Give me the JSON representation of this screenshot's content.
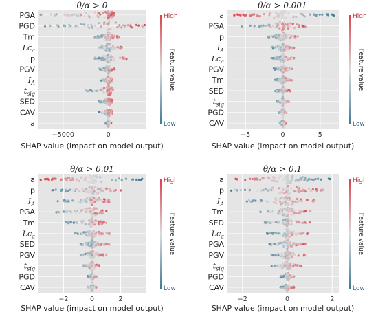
{
  "chart_data": [
    {
      "type": "beeswarm",
      "title": "θ/α > 0",
      "xlabel": "SHAP value (impact on model output)",
      "xlim": [
        -7800,
        4200
      ],
      "xticks": [
        -5000,
        0
      ],
      "xtick_labels": [
        "−5000",
        "0"
      ],
      "features": [
        "PGA",
        "PGD",
        "Tm",
        "Lc_a",
        "p",
        "PGV",
        "I_A",
        "t_sig",
        "SED",
        "CAV",
        "a"
      ],
      "feature_labels": [
        "PGA",
        "PGD",
        "Tm",
        "Lca",
        "p",
        "PGV",
        "IA",
        "tsig",
        "SED",
        "CAV",
        "a"
      ],
      "shap_range": [
        [
          -7500,
          600
        ],
        [
          -7000,
          4000
        ],
        [
          -1500,
          1200
        ],
        [
          -1000,
          1500
        ],
        [
          -1500,
          2000
        ],
        [
          -1000,
          700
        ],
        [
          -800,
          400
        ],
        [
          -2500,
          500
        ],
        [
          -1000,
          400
        ],
        [
          -1000,
          400
        ],
        [
          -300,
          300
        ]
      ],
      "colorbar": {
        "label": "Feature value",
        "high": "High",
        "low": "Low"
      }
    },
    {
      "type": "beeswarm",
      "title": "θ/α > 0.001",
      "xlabel": "SHAP value (impact on model output)",
      "xlim": [
        -7.5,
        7.5
      ],
      "xticks": [
        -5,
        0,
        5
      ],
      "xtick_labels": [
        "−5",
        "0",
        "5"
      ],
      "features": [
        "a",
        "PGA",
        "p",
        "I_A",
        "Lc_a",
        "PGV",
        "Tm",
        "SED",
        "t_sig",
        "PGD",
        "CAV"
      ],
      "feature_labels": [
        "a",
        "PGA",
        "p",
        "IA",
        "Lca",
        "PGV",
        "Tm",
        "SED",
        "tsig",
        "PGD",
        "CAV"
      ],
      "shap_range": [
        [
          -6.5,
          6.8
        ],
        [
          -5.5,
          3.0
        ],
        [
          -2.0,
          2.0
        ],
        [
          -1.5,
          1.5
        ],
        [
          -1.5,
          1.5
        ],
        [
          -1.2,
          1.2
        ],
        [
          -1.0,
          1.2
        ],
        [
          -1.0,
          1.0
        ],
        [
          -0.8,
          0.8
        ],
        [
          -0.5,
          0.5
        ],
        [
          -0.4,
          0.4
        ]
      ],
      "colorbar": {
        "label": "Feature value",
        "high": "High",
        "low": "Low"
      }
    },
    {
      "type": "beeswarm",
      "title": "θ/α > 0.01",
      "xlabel": "SHAP value (impact on model output)",
      "xlim": [
        -3.8,
        3.8
      ],
      "xticks": [
        -2,
        0,
        2
      ],
      "xtick_labels": [
        "−2",
        "0",
        "2"
      ],
      "features": [
        "a",
        "p",
        "I_A",
        "PGA",
        "Tm",
        "Lc_a",
        "SED",
        "PGV",
        "t_sig",
        "PGD",
        "CAV"
      ],
      "feature_labels": [
        "a",
        "p",
        "IA",
        "PGA",
        "Tm",
        "Lca",
        "SED",
        "PGV",
        "tsig",
        "PGD",
        "CAV"
      ],
      "shap_range": [
        [
          -3.6,
          3.5
        ],
        [
          -2.8,
          2.0
        ],
        [
          -2.4,
          1.2
        ],
        [
          -2.5,
          1.0
        ],
        [
          -1.8,
          1.0
        ],
        [
          -1.2,
          1.2
        ],
        [
          -0.8,
          1.2
        ],
        [
          -0.8,
          1.0
        ],
        [
          -0.6,
          0.5
        ],
        [
          -0.3,
          0.3
        ],
        [
          -0.3,
          0.3
        ]
      ],
      "colorbar": {
        "label": "Feature value",
        "high": "High",
        "low": "Low"
      }
    },
    {
      "type": "beeswarm",
      "title": "θ/α > 0.1",
      "xlabel": "SHAP value (impact on model output)",
      "xlim": [
        -2.7,
        2.3
      ],
      "xticks": [
        -2,
        0,
        2
      ],
      "xtick_labels": [
        "−2",
        "0",
        "2"
      ],
      "features": [
        "a",
        "p",
        "I_A",
        "Tm",
        "SED",
        "Lc_a",
        "PGA",
        "PGV",
        "t_sig",
        "PGD",
        "CAV"
      ],
      "feature_labels": [
        "a",
        "p",
        "IA",
        "Tm",
        "SED",
        "Lca",
        "PGA",
        "PGV",
        "tsig",
        "PGD",
        "CAV"
      ],
      "shap_range": [
        [
          -2.3,
          1.9
        ],
        [
          -2.5,
          1.6
        ],
        [
          -1.8,
          1.2
        ],
        [
          -1.2,
          1.0
        ],
        [
          -1.0,
          1.0
        ],
        [
          -0.9,
          0.9
        ],
        [
          -0.8,
          0.8
        ],
        [
          -0.7,
          0.8
        ],
        [
          -0.7,
          0.6
        ],
        [
          -0.3,
          0.3
        ],
        [
          -0.3,
          0.3
        ]
      ],
      "colorbar": {
        "label": "Feature value",
        "high": "High",
        "low": "Low"
      }
    }
  ],
  "colors": {
    "plot_bg": "#e5e5e5",
    "grid": "#ffffff",
    "high": "#d8424d",
    "mid": "#dcdcdc",
    "low": "#3f7a94"
  }
}
